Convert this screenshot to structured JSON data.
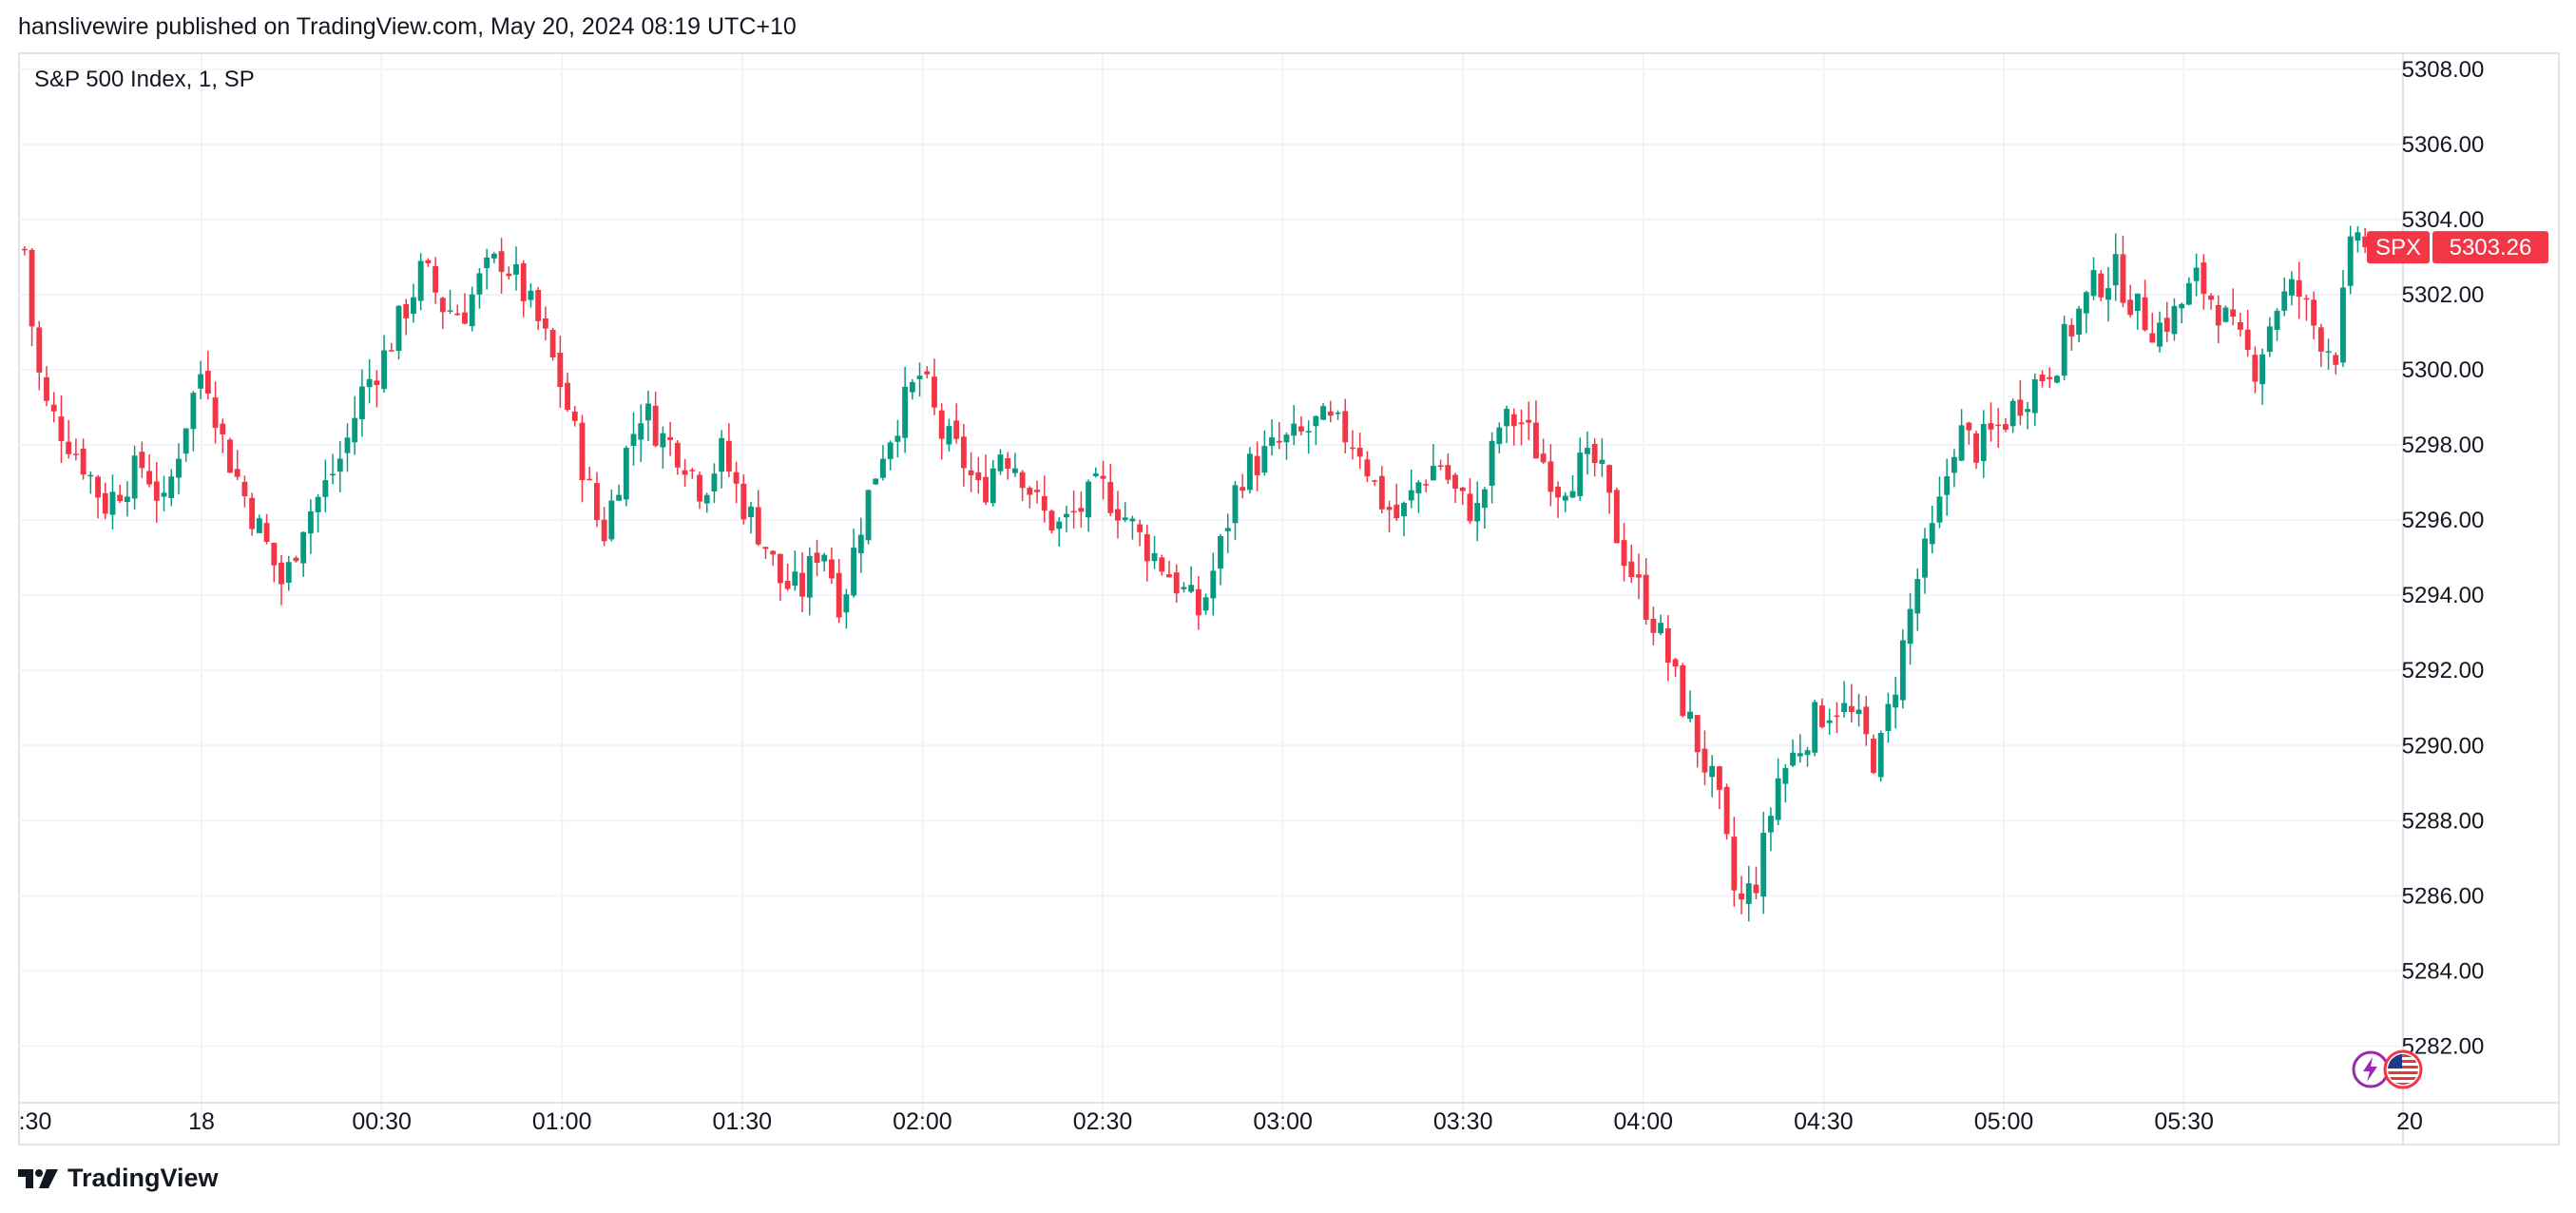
{
  "header": {
    "published_text": "hanslivewire published on TradingView.com, May 20, 2024 08:19 UTC+10"
  },
  "legend": {
    "symbol_text": "S&P 500 Index, 1, SP"
  },
  "price_label": {
    "ticker": "SPX",
    "value": "5303.26"
  },
  "footer": {
    "brand": "TradingView"
  },
  "colors": {
    "up": "#089981",
    "down": "#f23645",
    "grid": "#f0f3fa",
    "axis_text": "#131722",
    "badge_purple": "#9c27b0",
    "badge_red": "#f23645"
  },
  "icons": {
    "lightning": "lightning-icon",
    "flag": "us-flag-icon",
    "logo": "tradingview-logo-icon"
  },
  "chart_data": {
    "type": "candlestick",
    "title": "S&P 500 Index, 1, SP",
    "xlabel": "",
    "ylabel": "",
    "ylim": [
      5281,
      5308.4
    ],
    "y_ticks": [
      "5282.00",
      "5284.00",
      "5286.00",
      "5288.00",
      "5290.00",
      "5292.00",
      "5294.00",
      "5296.00",
      "5298.00",
      "5300.00",
      "5302.00",
      "5304.00",
      "5306.00",
      "5308.00"
    ],
    "x_ticks": [
      ":30",
      "18",
      "00:30",
      "01:00",
      "01:30",
      "02:00",
      "02:30",
      "03:00",
      "03:30",
      "04:00",
      "04:30",
      "05:00",
      "05:30",
      "20"
    ],
    "last_price": 5303.26,
    "grid": true,
    "series": [
      {
        "name": "SPX",
        "close_path": [
          [
            0,
            5303.2
          ],
          [
            1,
            5300.5
          ],
          [
            2,
            5299.1
          ],
          [
            4,
            5298.3
          ],
          [
            6,
            5297.5
          ],
          [
            8,
            5296.4
          ],
          [
            10,
            5297.0
          ],
          [
            12,
            5297.5
          ],
          [
            14,
            5296.3
          ],
          [
            16,
            5298.5
          ],
          [
            18,
            5300.2
          ],
          [
            20,
            5298.0
          ],
          [
            22,
            5296.7
          ],
          [
            24,
            5295.5
          ],
          [
            26,
            5294.2
          ],
          [
            28,
            5296.0
          ],
          [
            30,
            5296.8
          ],
          [
            32,
            5297.8
          ],
          [
            34,
            5299.5
          ],
          [
            36,
            5300.3
          ],
          [
            38,
            5301.5
          ],
          [
            40,
            5302.7
          ],
          [
            42,
            5301.7
          ],
          [
            44,
            5301.5
          ],
          [
            46,
            5302.5
          ],
          [
            48,
            5303.0
          ],
          [
            50,
            5302.1
          ],
          [
            52,
            5301.0
          ],
          [
            54,
            5299.5
          ],
          [
            56,
            5297.5
          ],
          [
            58,
            5295.5
          ],
          [
            60,
            5297.5
          ],
          [
            62,
            5299.0
          ],
          [
            64,
            5298.2
          ],
          [
            66,
            5297.8
          ],
          [
            68,
            5296.8
          ],
          [
            70,
            5297.8
          ],
          [
            72,
            5296.5
          ],
          [
            74,
            5295.6
          ],
          [
            76,
            5294.3
          ],
          [
            78,
            5294.1
          ],
          [
            80,
            5295.5
          ],
          [
            82,
            5293.7
          ],
          [
            84,
            5296.0
          ],
          [
            86,
            5297.8
          ],
          [
            88,
            5298.9
          ],
          [
            90,
            5299.9
          ],
          [
            92,
            5298.3
          ],
          [
            94,
            5297.7
          ],
          [
            96,
            5296.6
          ],
          [
            98,
            5297.9
          ],
          [
            100,
            5297.4
          ],
          [
            102,
            5296.2
          ],
          [
            104,
            5295.8
          ],
          [
            106,
            5296.3
          ],
          [
            108,
            5296.9
          ],
          [
            110,
            5296.3
          ],
          [
            112,
            5295.5
          ],
          [
            114,
            5294.9
          ],
          [
            116,
            5294.2
          ],
          [
            118,
            5293.5
          ],
          [
            120,
            5295.2
          ],
          [
            122,
            5297.2
          ],
          [
            124,
            5297.6
          ],
          [
            126,
            5298.0
          ],
          [
            128,
            5298.2
          ],
          [
            130,
            5298.6
          ],
          [
            132,
            5298.4
          ],
          [
            134,
            5298.0
          ],
          [
            136,
            5296.6
          ],
          [
            138,
            5296.0
          ],
          [
            140,
            5297.0
          ],
          [
            142,
            5297.6
          ],
          [
            144,
            5296.5
          ],
          [
            146,
            5296.2
          ],
          [
            148,
            5298.5
          ],
          [
            150,
            5298.7
          ],
          [
            152,
            5297.8
          ],
          [
            154,
            5296.9
          ],
          [
            156,
            5297.4
          ],
          [
            158,
            5297.5
          ],
          [
            160,
            5295.5
          ],
          [
            162,
            5294.2
          ],
          [
            164,
            5293.1
          ],
          [
            166,
            5291.5
          ],
          [
            168,
            5290.0
          ],
          [
            170,
            5288.6
          ],
          [
            172,
            5285.6
          ],
          [
            174,
            5286.5
          ],
          [
            176,
            5289.1
          ],
          [
            178,
            5289.9
          ],
          [
            180,
            5290.8
          ],
          [
            182,
            5291.1
          ],
          [
            184,
            5290.6
          ],
          [
            186,
            5289.5
          ],
          [
            188,
            5291.9
          ],
          [
            190,
            5294.4
          ],
          [
            192,
            5296.0
          ],
          [
            194,
            5298.4
          ],
          [
            196,
            5297.9
          ],
          [
            198,
            5298.4
          ],
          [
            200,
            5299.1
          ],
          [
            202,
            5299.7
          ],
          [
            204,
            5300.3
          ],
          [
            206,
            5301.4
          ],
          [
            208,
            5302.3
          ],
          [
            210,
            5302.6
          ],
          [
            212,
            5301.6
          ],
          [
            214,
            5301.1
          ],
          [
            216,
            5301.5
          ],
          [
            218,
            5302.4
          ],
          [
            220,
            5301.8
          ],
          [
            222,
            5300.8
          ],
          [
            224,
            5300.1
          ],
          [
            226,
            5301.7
          ],
          [
            228,
            5302.2
          ],
          [
            230,
            5301.1
          ],
          [
            232,
            5300.4
          ],
          [
            234,
            5303.9
          ],
          [
            235,
            5303.3
          ]
        ]
      }
    ]
  }
}
